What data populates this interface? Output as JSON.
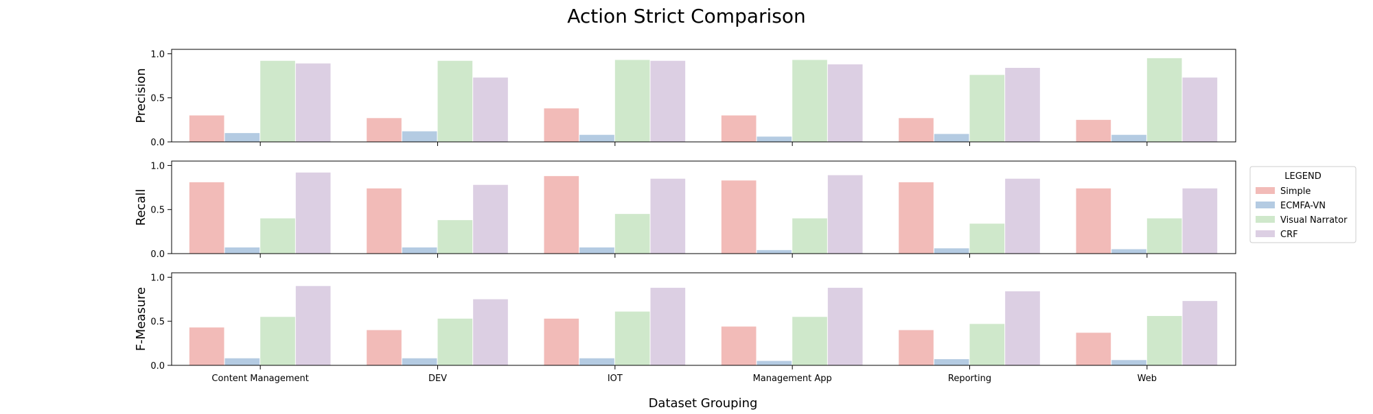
{
  "chart_data": {
    "type": "bar",
    "title": "Action Strict Comparison",
    "xlabel": "Dataset Grouping",
    "categories": [
      "Content Management",
      "DEV",
      "IOT",
      "Management App",
      "Reporting",
      "Web"
    ],
    "legend": {
      "title": "LEGEND",
      "placement": "right",
      "entries": [
        "Simple",
        "ECMFA-VN",
        "Visual Narrator",
        "CRF"
      ]
    },
    "colors": {
      "Simple": "#f2bbb8",
      "ECMFA-VN": "#b4cbe2",
      "Visual Narrator": "#cfe8cb",
      "CRF": "#dccfe3"
    },
    "panels": [
      {
        "ylabel": "Precision",
        "ylim": [
          0,
          1.05
        ],
        "yticks": [
          0.0,
          0.5,
          1.0
        ],
        "ytick_labels": [
          "0.0",
          "0.5",
          "1.0"
        ],
        "series": [
          {
            "name": "Simple",
            "values": [
              0.3,
              0.27,
              0.38,
              0.3,
              0.27,
              0.25
            ]
          },
          {
            "name": "ECMFA-VN",
            "values": [
              0.1,
              0.12,
              0.08,
              0.06,
              0.09,
              0.08
            ]
          },
          {
            "name": "Visual Narrator",
            "values": [
              0.92,
              0.92,
              0.93,
              0.93,
              0.76,
              0.95
            ]
          },
          {
            "name": "CRF",
            "values": [
              0.89,
              0.73,
              0.92,
              0.88,
              0.84,
              0.73
            ]
          }
        ]
      },
      {
        "ylabel": "Recall",
        "ylim": [
          0,
          1.05
        ],
        "yticks": [
          0.0,
          0.5,
          1.0
        ],
        "ytick_labels": [
          "0.0",
          "0.5",
          "1.0"
        ],
        "series": [
          {
            "name": "Simple",
            "values": [
              0.81,
              0.74,
              0.88,
              0.83,
              0.81,
              0.74
            ]
          },
          {
            "name": "ECMFA-VN",
            "values": [
              0.07,
              0.07,
              0.07,
              0.04,
              0.06,
              0.05
            ]
          },
          {
            "name": "Visual Narrator",
            "values": [
              0.4,
              0.38,
              0.45,
              0.4,
              0.34,
              0.4
            ]
          },
          {
            "name": "CRF",
            "values": [
              0.92,
              0.78,
              0.85,
              0.89,
              0.85,
              0.74
            ]
          }
        ]
      },
      {
        "ylabel": "F-Measure",
        "ylim": [
          0,
          1.05
        ],
        "yticks": [
          0.0,
          0.5,
          1.0
        ],
        "ytick_labels": [
          "0.0",
          "0.5",
          "1.0"
        ],
        "series": [
          {
            "name": "Simple",
            "values": [
              0.43,
              0.4,
              0.53,
              0.44,
              0.4,
              0.37
            ]
          },
          {
            "name": "ECMFA-VN",
            "values": [
              0.08,
              0.08,
              0.08,
              0.05,
              0.07,
              0.06
            ]
          },
          {
            "name": "Visual Narrator",
            "values": [
              0.55,
              0.53,
              0.61,
              0.55,
              0.47,
              0.56
            ]
          },
          {
            "name": "CRF",
            "values": [
              0.9,
              0.75,
              0.88,
              0.88,
              0.84,
              0.73
            ]
          }
        ]
      }
    ]
  }
}
